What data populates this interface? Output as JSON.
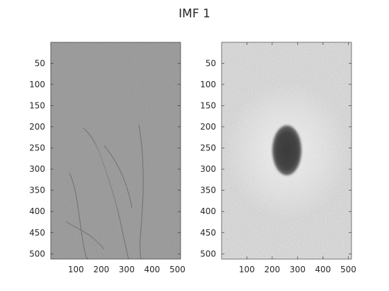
{
  "figure": {
    "title": "IMF 1",
    "colors": {
      "axis": "#262626",
      "background": "#ffffff"
    }
  },
  "chart_data": [
    {
      "type": "heatmap",
      "colormap": "gray",
      "description_of_content": "grayscale image of the first intrinsic mode function (high-frequency detail, mid-gray background with faint edge texture)",
      "xlim": [
        1,
        256
      ],
      "ylim": [
        1,
        512
      ],
      "y_direction": "reverse",
      "xticks": [],
      "yticks": [
        50,
        100,
        150,
        200,
        250,
        300,
        350,
        400,
        450,
        500
      ],
      "grid": false
    },
    {
      "type": "heatmap",
      "colormap": "gray",
      "description_of_content": "grayscale noise-like image, light gray with a dark elliptical region in the center",
      "xlim": [
        1,
        512
      ],
      "ylim": [
        1,
        512
      ],
      "y_direction": "reverse",
      "xticks": [
        100,
        200,
        300,
        400,
        500
      ],
      "yticks": [
        50,
        100,
        150,
        200,
        250,
        300,
        350,
        400,
        450,
        500
      ],
      "grid": false
    }
  ]
}
